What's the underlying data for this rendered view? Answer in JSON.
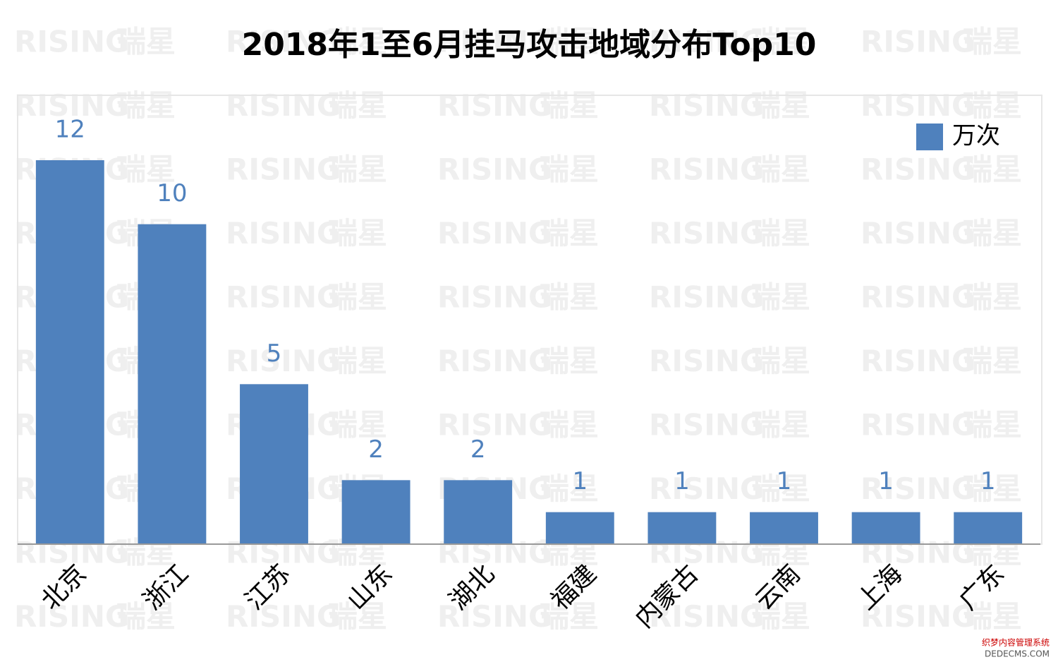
{
  "chart_data": {
    "type": "bar",
    "title": "2018年1至6月挂马攻击地域分布Top10",
    "categories": [
      "北京",
      "浙江",
      "江苏",
      "山东",
      "湖北",
      "福建",
      "内蒙古",
      "云南",
      "上海",
      "广东"
    ],
    "series": [
      {
        "name": "万次",
        "color": "#4f81bd",
        "values": [
          12,
          10,
          5,
          2,
          2,
          1,
          1,
          1,
          1,
          1
        ]
      }
    ],
    "legend": "top-right",
    "watermark": [
      "RISING",
      "瑞星"
    ],
    "corner_mark": [
      "织梦内容管理系统",
      "DEDECMS.COM"
    ]
  }
}
